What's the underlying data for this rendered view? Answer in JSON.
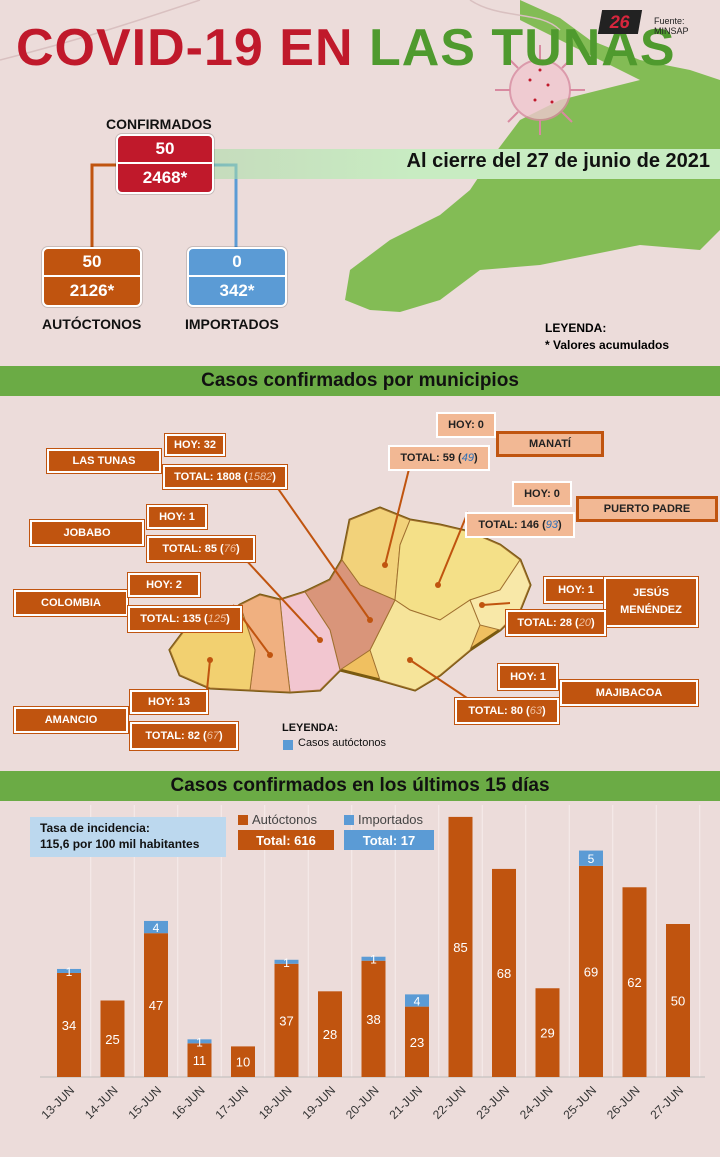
{
  "header": {
    "title_part1": "COVID-19 EN",
    "title_part2": "LAS TUNAS",
    "logo": "26",
    "source": "Fuente: MINSAP",
    "date": "Al cierre del 27 de junio de 2021"
  },
  "summary": {
    "confirmados": {
      "label": "CONFIRMADOS",
      "today": "50",
      "total": "2468*"
    },
    "autoctonos": {
      "label": "AUTÓCTONOS",
      "today": "50",
      "total": "2126*"
    },
    "importados": {
      "label": "IMPORTADOS",
      "today": "0",
      "total": "342*"
    },
    "legend_title": "LEYENDA:",
    "legend_text": "* Valores acumulados"
  },
  "colors": {
    "orange": "#c0540f",
    "red": "#c0192b",
    "blue": "#5b9bd5",
    "green": "#6bab45",
    "light_orange": "#f2b894"
  },
  "municipios_title": "Casos confirmados por municipios",
  "municipios": [
    {
      "name": "LAS TUNAS",
      "hoy": "HOY: 32",
      "total": "TOTAL: 1808 (",
      "acc": "1582",
      "close": ")"
    },
    {
      "name": "JOBABO",
      "hoy": "HOY: 1",
      "total": "TOTAL: 85 (",
      "acc": "76",
      "close": ")"
    },
    {
      "name": "COLOMBIA",
      "hoy": "HOY: 2",
      "total": "TOTAL: 135 (",
      "acc": "125",
      "close": ")"
    },
    {
      "name": "AMANCIO",
      "hoy": "HOY: 13",
      "total": "TOTAL: 82 (",
      "acc": "67",
      "close": ")"
    },
    {
      "name": "MANATÍ",
      "hoy": "HOY: 0",
      "total": "TOTAL: 59 (",
      "acc": "49",
      "close": ")"
    },
    {
      "name": "PUERTO PADRE",
      "hoy": "HOY: 0",
      "total": "TOTAL: 146 (",
      "acc": "93",
      "close": ")"
    },
    {
      "name": "JESÚS MENÉNDEZ",
      "hoy": "HOY: 1",
      "total": "TOTAL: 28 (",
      "acc": "20",
      "close": ")"
    },
    {
      "name": "MAJIBACOA",
      "hoy": "HOY: 1",
      "total": "TOTAL: 80 (",
      "acc": "63",
      "close": ")"
    }
  ],
  "map_legend": {
    "title": "LEYENDA:",
    "item": "Casos autóctonos"
  },
  "chart_section_title": "Casos confirmados en los últimos 15 días",
  "incidence": {
    "line1": "Tasa de incidencia:",
    "line2": "115,6 por 100 mil habitantes"
  },
  "chart_data": {
    "type": "bar",
    "stacked": true,
    "categories": [
      "13-JUN",
      "14-JUN",
      "15-JUN",
      "16-JUN",
      "17-JUN",
      "18-JUN",
      "19-JUN",
      "20-JUN",
      "21-JUN",
      "22-JUN",
      "23-JUN",
      "24-JUN",
      "25-JUN",
      "26-JUN",
      "27-JUN"
    ],
    "series": [
      {
        "name": "Autóctonos",
        "total_label": "Total: 616",
        "color": "#c0540f",
        "values": [
          34,
          25,
          47,
          11,
          10,
          37,
          28,
          38,
          23,
          85,
          68,
          29,
          69,
          62,
          50
        ]
      },
      {
        "name": "Importados",
        "total_label": "Total: 17",
        "color": "#5b9bd5",
        "values": [
          1,
          0,
          4,
          1,
          0,
          1,
          0,
          1,
          4,
          0,
          0,
          0,
          5,
          0,
          0
        ]
      }
    ],
    "legend_position": "top",
    "grid": true
  }
}
